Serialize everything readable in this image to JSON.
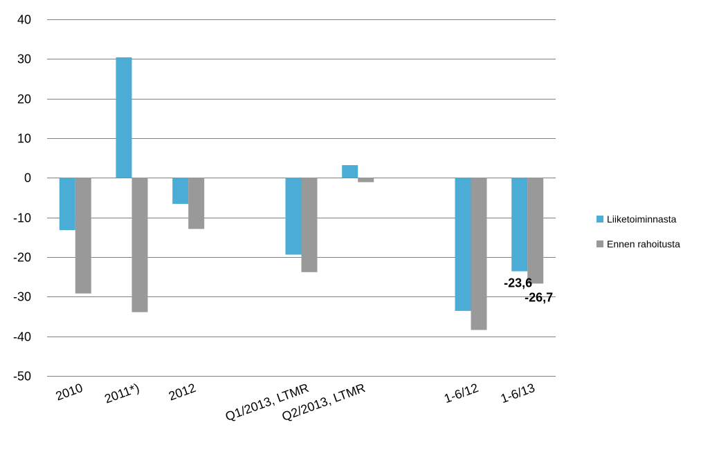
{
  "chart_data": {
    "type": "bar",
    "categories": [
      "2010",
      "2011*)",
      "2012",
      "",
      "Q1/2013, LTMR",
      "Q2/2013, LTMR",
      "",
      "1-6/12",
      "1-6/13"
    ],
    "series": [
      {
        "name": "Liiketoiminnasta",
        "color": "#4bacd6",
        "values": [
          -13.2,
          30.4,
          -6.6,
          null,
          -19.4,
          3.2,
          null,
          -33.6,
          -23.6
        ]
      },
      {
        "name": "Ennen rahoitusta",
        "color": "#999999",
        "values": [
          -29.2,
          -33.9,
          -12.9,
          null,
          -23.8,
          -1.1,
          null,
          -38.4,
          -26.7
        ]
      }
    ],
    "data_labels": [
      {
        "series": 0,
        "index": 8,
        "text": "-23,6"
      },
      {
        "series": 1,
        "index": 8,
        "text": "-26,7"
      }
    ],
    "ylim": [
      -50,
      40
    ],
    "yticks": [
      40,
      30,
      20,
      10,
      0,
      -10,
      -20,
      -30,
      -40,
      -50
    ],
    "grid": true,
    "legend_position": "right"
  }
}
